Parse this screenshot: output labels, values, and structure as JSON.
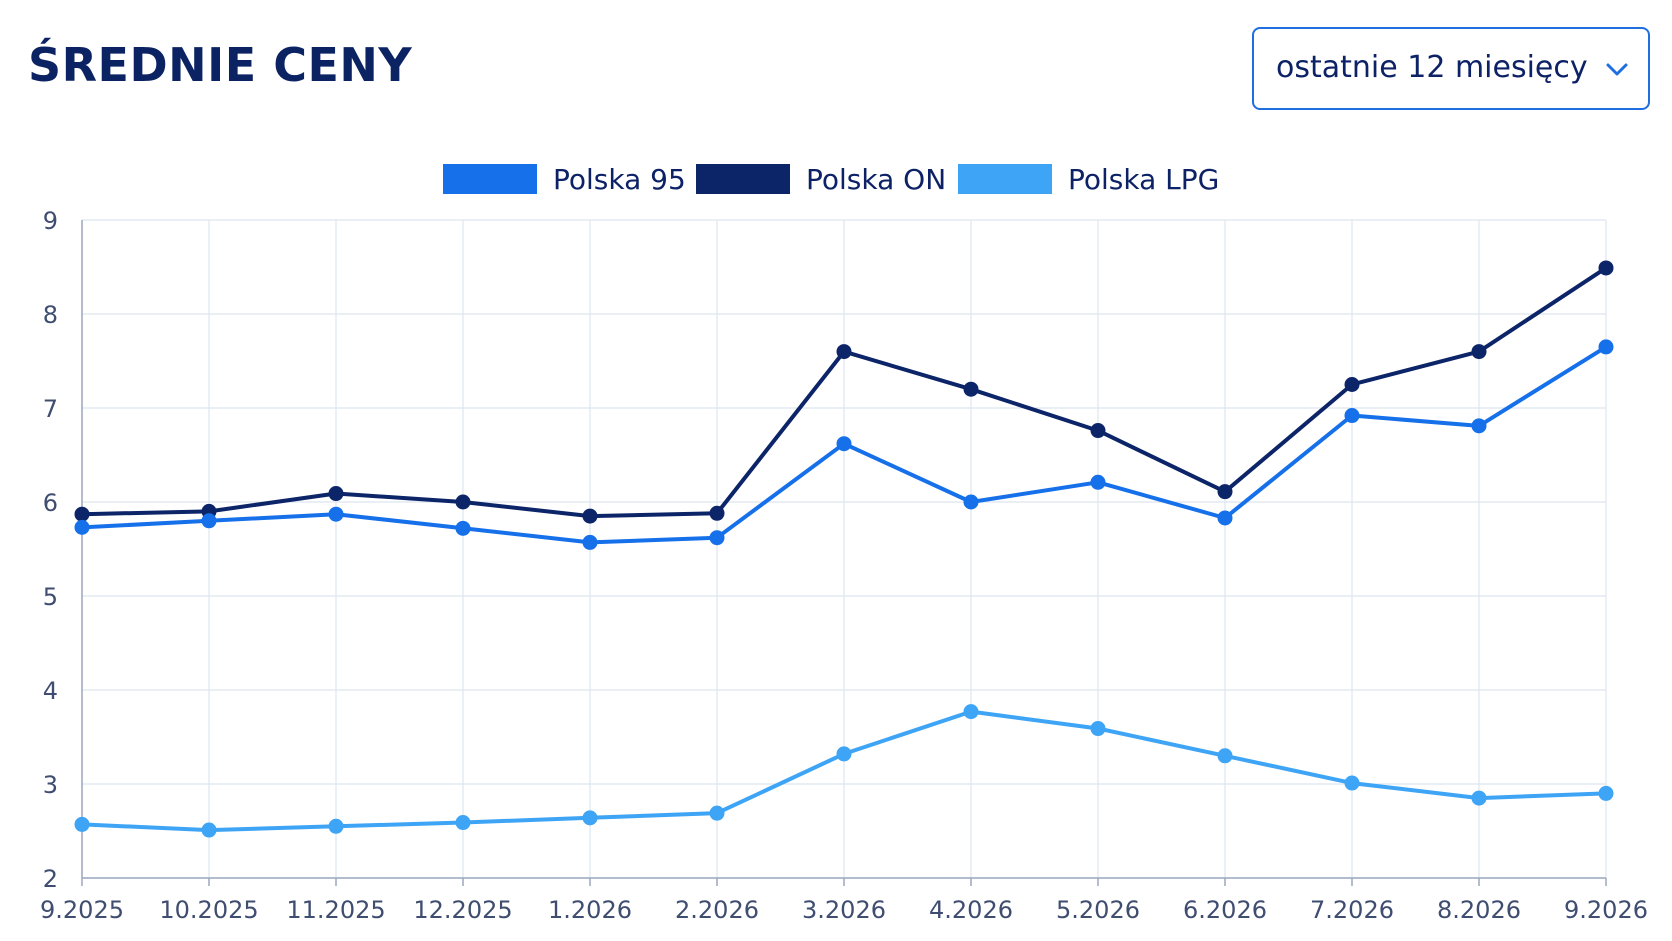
{
  "header": {
    "title": "ŚREDNIE CENY",
    "period_select": "ostatnie 12 miesięcy"
  },
  "colors": {
    "polska_95": "#1670ea",
    "polska_on": "#0c2468",
    "polska_lpg": "#3ea4f5",
    "grid": "#dde5ef",
    "axis": "#9aa8bf"
  },
  "chart_data": {
    "type": "line",
    "x": [
      "9.2025",
      "10.2025",
      "11.2025",
      "12.2025",
      "1.2026",
      "2.2026",
      "3.2026",
      "4.2026",
      "5.2026",
      "6.2026",
      "7.2026",
      "8.2026",
      "9.2026"
    ],
    "ylim": [
      2,
      9
    ],
    "yticks": [
      "2",
      "3",
      "4",
      "5",
      "6",
      "7",
      "8",
      "9"
    ],
    "grid": true,
    "legend_position": "top-center",
    "series": [
      {
        "name": "Polska 95",
        "color": "#1670ea",
        "values": [
          5.73,
          5.8,
          5.87,
          5.72,
          5.57,
          5.62,
          6.62,
          6.0,
          6.21,
          5.83,
          6.92,
          6.81,
          7.65
        ]
      },
      {
        "name": "Polska ON",
        "color": "#0c2468",
        "values": [
          5.87,
          5.9,
          6.09,
          6.0,
          5.85,
          5.88,
          7.6,
          7.2,
          6.76,
          6.11,
          7.25,
          7.6,
          8.49
        ]
      },
      {
        "name": "Polska LPG",
        "color": "#3ea4f5",
        "values": [
          2.57,
          2.51,
          2.55,
          2.59,
          2.64,
          2.69,
          3.32,
          3.77,
          3.59,
          3.3,
          3.01,
          2.85,
          2.9
        ]
      }
    ]
  }
}
